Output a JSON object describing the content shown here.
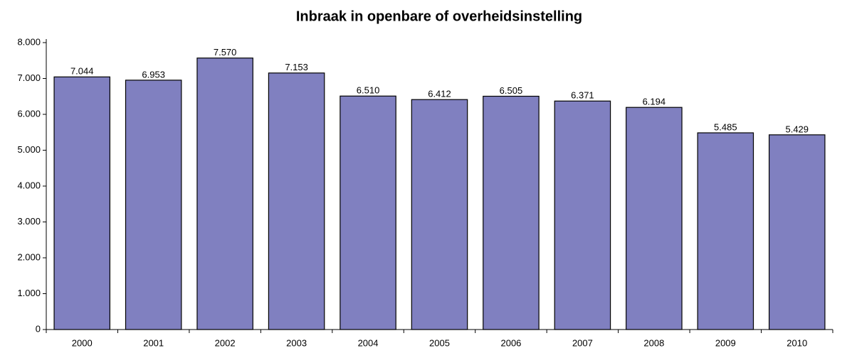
{
  "chart_data": {
    "type": "bar",
    "title": "Inbraak in openbare of overheidsinstelling",
    "categories": [
      "2000",
      "2001",
      "2002",
      "2003",
      "2004",
      "2005",
      "2006",
      "2007",
      "2008",
      "2009",
      "2010"
    ],
    "values": [
      7044,
      6953,
      7570,
      7153,
      6510,
      6412,
      6505,
      6371,
      6194,
      5485,
      5429
    ],
    "value_labels": [
      "7.044",
      "6.953",
      "7.570",
      "7.153",
      "6.510",
      "6.412",
      "6.505",
      "6.371",
      "6.194",
      "5.485",
      "5.429"
    ],
    "color": "#8080c0",
    "ylim": [
      0,
      8000
    ],
    "yticks": [
      0,
      {
        "value": 1000,
        "label": "1.000"
      },
      {
        "value": 2000,
        "label": "2.000"
      },
      {
        "value": 3000,
        "label": "3.000"
      },
      {
        "value": 4000,
        "label": "4.000"
      },
      {
        "value": 5000,
        "label": "5.000"
      },
      {
        "value": 6000,
        "label": "6.000"
      },
      {
        "value": 7000,
        "label": "7.000"
      },
      {
        "value": 8000,
        "label": "8.000"
      }
    ],
    "grid": false
  }
}
